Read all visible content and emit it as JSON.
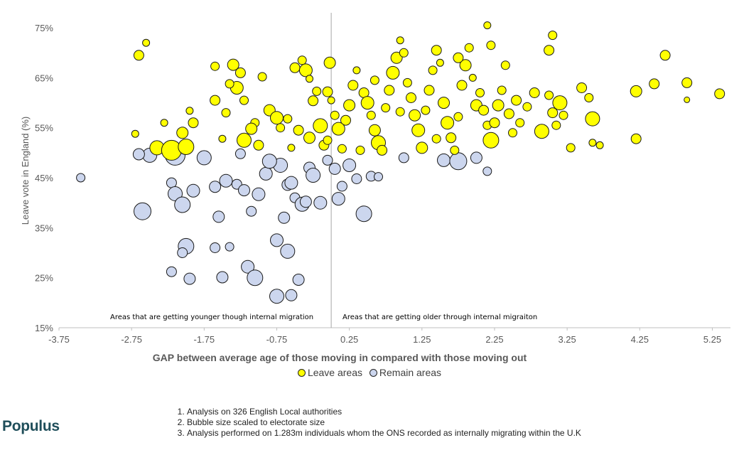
{
  "chart_data": {
    "type": "scatter",
    "xlabel": "GAP between average age of those moving in compared with those moving out",
    "ylabel": "Leave vote in England (%)",
    "xlim": [
      -3.75,
      5.5
    ],
    "ylim": [
      15,
      78
    ],
    "x_ticks": [
      -3.75,
      -2.75,
      -1.75,
      -0.75,
      0.25,
      1.25,
      2.25,
      3.25,
      4.25,
      5.25
    ],
    "x_tick_labels": [
      "-3.75",
      "-2.75",
      "-1.75",
      "-0.75",
      "0.25",
      "1.25",
      "2.25",
      "3.25",
      "4.25",
      "5.25"
    ],
    "y_ticks": [
      15,
      25,
      35,
      45,
      55,
      65,
      75
    ],
    "y_tick_labels": [
      "15%",
      "25%",
      "35%",
      "45%",
      "55%",
      "65%",
      "75%"
    ],
    "divider_x": 0.0,
    "annotations": {
      "left": "Areas that are getting younger though internal migration",
      "right": "Areas that are getting older through internal migraiton"
    },
    "series": [
      {
        "name": "Leave areas",
        "color": "#ffff00",
        "points": [
          [
            -2.65,
            69.5,
            7
          ],
          [
            -2.55,
            72,
            5
          ],
          [
            -2.7,
            53.8,
            5
          ],
          [
            -2.4,
            51,
            10
          ],
          [
            -2.2,
            50.5,
            14
          ],
          [
            -2.0,
            51.2,
            11
          ],
          [
            -2.05,
            54,
            8
          ],
          [
            -1.9,
            56,
            7
          ],
          [
            -1.95,
            58.4,
            5
          ],
          [
            -1.6,
            67.3,
            6
          ],
          [
            -1.45,
            58,
            6
          ],
          [
            -1.35,
            67.6,
            8
          ],
          [
            -1.25,
            66,
            7
          ],
          [
            -1.3,
            63,
            9
          ],
          [
            -1.2,
            60.5,
            6
          ],
          [
            -1.4,
            63.8,
            6
          ],
          [
            -1.5,
            52.8,
            5
          ],
          [
            -1.2,
            52.5,
            10
          ],
          [
            -1.05,
            56,
            6
          ],
          [
            -1.1,
            54.8,
            8
          ],
          [
            -1.0,
            51.5,
            7
          ],
          [
            -0.95,
            65.2,
            6
          ],
          [
            -0.85,
            58.5,
            8
          ],
          [
            -0.75,
            57,
            9
          ],
          [
            -0.7,
            55,
            6
          ],
          [
            -0.5,
            67,
            7
          ],
          [
            -0.4,
            68.5,
            6
          ],
          [
            -0.35,
            66.5,
            9
          ],
          [
            -0.3,
            64.8,
            5
          ],
          [
            -0.55,
            51,
            5
          ],
          [
            -0.6,
            56.8,
            6
          ],
          [
            -0.2,
            62.3,
            6
          ],
          [
            -0.25,
            60.4,
            7
          ],
          [
            -0.3,
            53,
            8
          ],
          [
            -0.15,
            55.4,
            10
          ],
          [
            -0.05,
            62.2,
            7
          ],
          [
            0.0,
            60.5,
            5
          ],
          [
            0.05,
            57.5,
            6
          ],
          [
            -0.1,
            51.5,
            7
          ],
          [
            0.15,
            50.8,
            6
          ],
          [
            0.2,
            56.5,
            7
          ],
          [
            0.25,
            59.5,
            8
          ],
          [
            0.1,
            54.8,
            9
          ],
          [
            -0.05,
            52.5,
            6
          ],
          [
            -0.02,
            68,
            8
          ],
          [
            0.3,
            63.5,
            7
          ],
          [
            0.35,
            66.5,
            5
          ],
          [
            0.45,
            62,
            7
          ],
          [
            0.5,
            60,
            9
          ],
          [
            0.55,
            57.5,
            6
          ],
          [
            0.6,
            54.5,
            8
          ],
          [
            0.65,
            52,
            10
          ],
          [
            0.7,
            50.5,
            7
          ],
          [
            0.75,
            59,
            6
          ],
          [
            0.8,
            62.5,
            7
          ],
          [
            0.85,
            66,
            9
          ],
          [
            0.9,
            69,
            8
          ],
          [
            0.95,
            72.5,
            5
          ],
          [
            1.0,
            70,
            6
          ],
          [
            1.05,
            64,
            6
          ],
          [
            1.1,
            61,
            7
          ],
          [
            1.15,
            57.5,
            8
          ],
          [
            1.2,
            54.5,
            9
          ],
          [
            1.25,
            51,
            8
          ],
          [
            1.3,
            58.5,
            6
          ],
          [
            1.35,
            62.5,
            7
          ],
          [
            1.4,
            66.5,
            6
          ],
          [
            1.45,
            70.5,
            7
          ],
          [
            1.5,
            68,
            5
          ],
          [
            1.55,
            60,
            8
          ],
          [
            1.6,
            56,
            9
          ],
          [
            1.65,
            53,
            7
          ],
          [
            1.7,
            50.5,
            6
          ],
          [
            1.75,
            57.2,
            6
          ],
          [
            1.8,
            63.5,
            7
          ],
          [
            1.85,
            67.5,
            8
          ],
          [
            1.9,
            71,
            6
          ],
          [
            1.95,
            65,
            5
          ],
          [
            2.0,
            59.5,
            8
          ],
          [
            2.05,
            62,
            6
          ],
          [
            2.1,
            58.5,
            7
          ],
          [
            2.15,
            55.5,
            6
          ],
          [
            2.2,
            52.5,
            11
          ],
          [
            2.25,
            56,
            7
          ],
          [
            2.3,
            59.5,
            8
          ],
          [
            2.35,
            62.5,
            6
          ],
          [
            2.4,
            67.5,
            6
          ],
          [
            2.45,
            57.8,
            7
          ],
          [
            2.5,
            54,
            6
          ],
          [
            2.55,
            60.5,
            7
          ],
          [
            2.6,
            56,
            6
          ],
          [
            2.7,
            59.2,
            6
          ],
          [
            2.8,
            62,
            7
          ],
          [
            2.9,
            54.3,
            10
          ],
          [
            3.0,
            61.5,
            6
          ],
          [
            3.05,
            58,
            7
          ],
          [
            3.1,
            55.5,
            6
          ],
          [
            3.15,
            60,
            10
          ],
          [
            3.2,
            57.5,
            6
          ],
          [
            3.3,
            51,
            6
          ],
          [
            3.0,
            70.5,
            7
          ],
          [
            3.05,
            73.5,
            6
          ],
          [
            3.45,
            63,
            7
          ],
          [
            3.55,
            61,
            6
          ],
          [
            3.6,
            56.8,
            10
          ],
          [
            3.6,
            52,
            5
          ],
          [
            3.7,
            51.5,
            5
          ],
          [
            4.2,
            62.3,
            8
          ],
          [
            4.2,
            52.8,
            7
          ],
          [
            4.45,
            63.8,
            7
          ],
          [
            4.6,
            69.5,
            7
          ],
          [
            4.9,
            64,
            7
          ],
          [
            4.9,
            60.6,
            4
          ],
          [
            5.35,
            61.8,
            7
          ],
          [
            2.15,
            75.5,
            5
          ],
          [
            2.2,
            71.5,
            6
          ],
          [
            1.75,
            69,
            7
          ],
          [
            -2.3,
            56,
            5
          ],
          [
            0.4,
            50.5,
            6
          ],
          [
            1.45,
            52.8,
            6
          ],
          [
            0.95,
            58.2,
            6
          ],
          [
            -1.6,
            60.5,
            7
          ],
          [
            -0.45,
            54.5,
            7
          ],
          [
            0.6,
            64.5,
            6
          ]
        ]
      },
      {
        "name": "Remain areas",
        "color": "#ccd6ee",
        "points": [
          [
            -3.45,
            45,
            6
          ],
          [
            -2.5,
            49.5,
            10
          ],
          [
            -2.6,
            38.3,
            12
          ],
          [
            -2.15,
            49.5,
            14
          ],
          [
            -2.2,
            44,
            7
          ],
          [
            -2.15,
            41.8,
            10
          ],
          [
            -2.05,
            39.6,
            11
          ],
          [
            -1.9,
            42.4,
            9
          ],
          [
            -1.75,
            49,
            10
          ],
          [
            -1.6,
            43.2,
            8
          ],
          [
            -1.45,
            44.4,
            9
          ],
          [
            -1.3,
            43.7,
            7
          ],
          [
            -1.2,
            42.5,
            8
          ],
          [
            -1.1,
            38.3,
            7
          ],
          [
            -1.0,
            41.7,
            9
          ],
          [
            -0.9,
            45.8,
            9
          ],
          [
            -0.8,
            48,
            6
          ],
          [
            -0.7,
            47.5,
            10
          ],
          [
            -0.6,
            43.6,
            8
          ],
          [
            -0.5,
            41,
            7
          ],
          [
            -0.4,
            39.7,
            10
          ],
          [
            -0.3,
            47,
            8
          ],
          [
            -0.25,
            45.5,
            10
          ],
          [
            -0.15,
            40,
            9
          ],
          [
            -0.05,
            48.5,
            7
          ],
          [
            0.05,
            46.8,
            8
          ],
          [
            0.15,
            43.3,
            7
          ],
          [
            0.25,
            47.5,
            9
          ],
          [
            0.35,
            44.8,
            7
          ],
          [
            0.45,
            37.8,
            11
          ],
          [
            0.55,
            45.3,
            7
          ],
          [
            0.65,
            45.2,
            6
          ],
          [
            0.1,
            40.8,
            9
          ],
          [
            -1.55,
            37.2,
            8
          ],
          [
            -0.65,
            37,
            8
          ],
          [
            -2.0,
            31.3,
            11
          ],
          [
            -1.6,
            31,
            7
          ],
          [
            -1.4,
            31.2,
            6
          ],
          [
            -1.15,
            27.2,
            9
          ],
          [
            -0.75,
            32.5,
            9
          ],
          [
            -0.6,
            30.3,
            10
          ],
          [
            -0.45,
            24.6,
            8
          ],
          [
            -1.05,
            25,
            11
          ],
          [
            -0.75,
            21.3,
            10
          ],
          [
            -0.55,
            21.5,
            8
          ],
          [
            -2.2,
            26.2,
            7
          ],
          [
            -1.95,
            24.8,
            8
          ],
          [
            -1.5,
            25.1,
            8
          ],
          [
            -2.05,
            30,
            7
          ],
          [
            1.0,
            49,
            7
          ],
          [
            1.55,
            48.5,
            9
          ],
          [
            1.75,
            48.3,
            12
          ],
          [
            2.0,
            49,
            8
          ],
          [
            2.15,
            46.3,
            6
          ],
          [
            -2.65,
            49.7,
            8
          ],
          [
            -1.25,
            49.8,
            7
          ],
          [
            -0.85,
            48.3,
            10
          ],
          [
            -0.55,
            44,
            9
          ],
          [
            -0.35,
            40.2,
            8
          ]
        ]
      }
    ]
  },
  "legend": {
    "leave_label": "Leave areas",
    "remain_label": "Remain areas"
  },
  "brand": "Populus",
  "notes": [
    "Analysis on 326 English Local authorities",
    "Bubble size scaled to electorate size",
    "Analysis performed on 1.283m individuals whom the ONS recorded as internally migrating within the U.K"
  ]
}
